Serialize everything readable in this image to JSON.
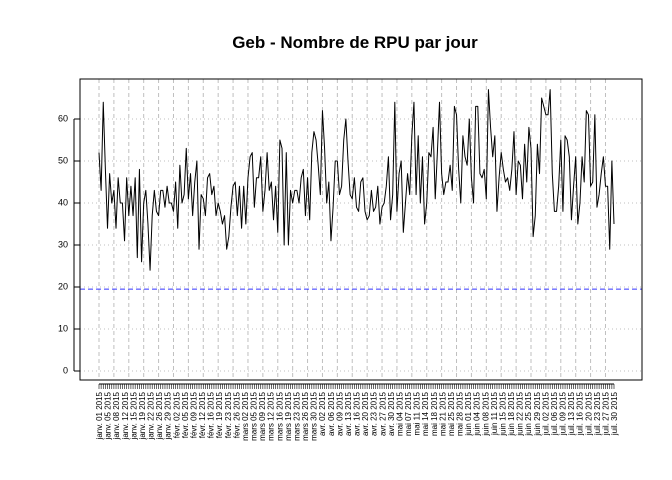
{
  "chart_data": {
    "type": "line",
    "title": "Geb  - Nombre de RPU par jour",
    "xlabel": "",
    "ylabel": "",
    "x_range": [
      "2015-01-01",
      "2015-07-31"
    ],
    "ylim": [
      0,
      67
    ],
    "y_ticks": [
      0,
      10,
      20,
      30,
      40,
      50,
      60
    ],
    "grid": true,
    "reference_line": {
      "y": 19.5,
      "color": "#3333ff",
      "style": "dashed"
    },
    "series_color": "#000000",
    "x_tick_labels": [
      "janv. 01 2015",
      "janv. 05 2015",
      "janv. 08 2015",
      "janv. 12 2015",
      "janv. 15 2015",
      "janv. 19 2015",
      "janv. 22 2015",
      "janv. 26 2015",
      "janv. 29 2015",
      "févr. 02 2015",
      "févr. 05 2015",
      "févr. 09 2015",
      "févr. 12 2015",
      "févr. 16 2015",
      "févr. 19 2015",
      "févr. 23 2015",
      "févr. 26 2015",
      "mars 02 2015",
      "mars 05 2015",
      "mars 09 2015",
      "mars 12 2015",
      "mars 16 2015",
      "mars 19 2015",
      "mars 23 2015",
      "mars 26 2015",
      "mars 30 2015",
      "avr. 02 2015",
      "avr. 06 2015",
      "avr. 09 2015",
      "avr. 13 2015",
      "avr. 16 2015",
      "avr. 20 2015",
      "avr. 23 2015",
      "avr. 27 2015",
      "avr. 30 2015",
      "mai 04 2015",
      "mai 07 2015",
      "mai 11 2015",
      "mai 14 2015",
      "mai 18 2015",
      "mai 21 2015",
      "mai 25 2015",
      "mai 28 2015",
      "juin 01 2015",
      "juin 04 2015",
      "juin 08 2015",
      "juin 11 2015",
      "juin 15 2015",
      "juin 18 2015",
      "juin 22 2015",
      "juin 25 2015",
      "juin 29 2015",
      "juil. 02 2015",
      "juil. 06 2015",
      "juil. 09 2015",
      "juil. 13 2015",
      "juil. 16 2015",
      "juil. 20 2015",
      "juil. 23 2015",
      "juil. 27 2015",
      "juil. 30 2015"
    ],
    "series": [
      {
        "values": [
          52,
          43,
          64,
          48,
          34,
          47,
          40,
          43,
          34,
          46,
          40,
          40,
          31,
          46,
          37,
          44,
          37,
          46,
          27,
          48,
          26,
          40,
          43,
          35,
          24,
          37,
          43,
          38,
          37,
          43,
          43,
          39,
          44,
          40,
          40,
          38,
          45,
          34,
          49,
          40,
          42,
          53,
          41,
          47,
          37,
          45,
          50,
          29,
          42,
          41,
          37,
          46,
          47,
          42,
          44,
          37,
          40,
          38,
          35,
          37,
          29,
          32,
          39,
          44,
          45,
          37,
          44,
          34,
          44,
          35,
          46,
          51,
          52,
          39,
          46,
          46,
          51,
          38,
          43,
          52,
          43,
          45,
          36,
          44,
          33,
          55,
          53,
          30,
          52,
          30,
          43,
          40,
          43,
          43,
          40,
          46,
          48,
          37,
          46,
          36,
          52,
          57,
          55,
          49,
          42,
          62,
          53,
          40,
          45,
          31,
          39,
          50,
          50,
          42,
          44,
          55,
          60,
          50,
          42,
          41,
          46,
          39,
          38,
          45,
          46,
          38,
          36,
          37,
          43,
          38,
          39,
          44,
          35,
          39,
          40,
          44,
          51,
          36,
          42,
          64,
          38,
          47,
          50,
          33,
          40,
          47,
          42,
          56,
          64,
          42,
          56,
          40,
          51,
          35,
          40,
          52,
          51,
          58,
          41,
          52,
          64,
          47,
          42,
          45,
          45,
          49,
          43,
          63,
          61,
          48,
          40,
          56,
          51,
          49,
          60,
          46,
          40,
          63,
          63,
          47,
          46,
          48,
          41,
          67,
          58,
          51,
          56,
          38,
          46,
          52,
          48,
          45,
          46,
          43,
          48,
          57,
          42,
          50,
          49,
          41,
          54,
          45,
          58,
          53,
          32,
          37,
          54,
          47,
          65,
          63,
          61,
          61,
          67,
          47,
          38,
          38,
          44,
          55,
          38,
          56,
          55,
          51,
          36,
          44,
          51,
          35,
          40,
          51,
          45,
          62,
          61,
          44,
          45,
          61,
          39,
          42,
          47,
          51,
          44,
          44,
          29,
          50,
          35
        ]
      }
    ]
  }
}
